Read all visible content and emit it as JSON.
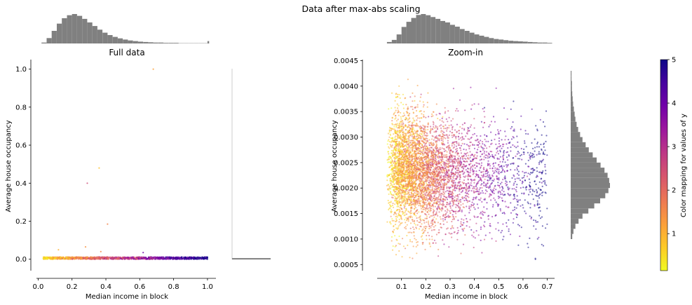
{
  "figure": {
    "suptitle": "Data after max-abs scaling"
  },
  "colors": {
    "hist": "#808080",
    "axis": "#000000",
    "colormap": [
      "#0d0887",
      "#46039f",
      "#7201a8",
      "#9c179e",
      "#bd3786",
      "#d8576b",
      "#ed7953",
      "#fb9f3a",
      "#fdca26",
      "#f0f921"
    ]
  },
  "chart_data": [
    {
      "type": "scatter",
      "title": "Full data",
      "xlabel": "Median income in block",
      "ylabel": "Average house occupancy",
      "xlim": [
        -0.01,
        1.05
      ],
      "ylim": [
        -0.06,
        1.05
      ],
      "xticks": [
        "0.0",
        "0.2",
        "0.4",
        "0.6",
        "0.8",
        "1.0"
      ],
      "xtick_values": [
        0.0,
        0.2,
        0.4,
        0.6,
        0.8,
        1.0
      ],
      "yticks": [
        "0.0",
        "0.2",
        "0.4",
        "0.6",
        "0.8",
        "1.0"
      ],
      "ytick_values": [
        0.0,
        0.2,
        0.4,
        0.6,
        0.8,
        1.0
      ],
      "outliers": [
        {
          "x": 0.68,
          "y": 1.0,
          "c": 1.2
        },
        {
          "x": 0.36,
          "y": 0.48,
          "c": 0.8
        },
        {
          "x": 0.29,
          "y": 0.4,
          "c": 2.5
        },
        {
          "x": 0.41,
          "y": 0.185,
          "c": 1.6
        },
        {
          "x": 0.28,
          "y": 0.065,
          "c": 1.4
        },
        {
          "x": 0.12,
          "y": 0.05,
          "c": 1.0
        },
        {
          "x": 0.62,
          "y": 0.035,
          "c": 4.0
        },
        {
          "x": 0.37,
          "y": 0.04,
          "c": 1.5
        },
        {
          "x": 1.0,
          "y": 0.008,
          "c": 5.0
        }
      ],
      "main_cluster": {
        "x_range": [
          0.03,
          1.0
        ],
        "y_range": [
          0.0,
          0.013
        ]
      },
      "top_histogram": {
        "bins_x": [
          0.02,
          0.05,
          0.08,
          0.11,
          0.14,
          0.17,
          0.2,
          0.23,
          0.26,
          0.29,
          0.32,
          0.35,
          0.38,
          0.41,
          0.44,
          0.47,
          0.5,
          0.53,
          0.56,
          0.59,
          0.62,
          0.65,
          0.68,
          0.71,
          0.74,
          0.77,
          0.8,
          0.83,
          0.86,
          0.89,
          0.92,
          0.95,
          0.98,
          1.0
        ],
        "counts": [
          3,
          18,
          42,
          66,
          84,
          94,
          98,
          92,
          82,
          70,
          58,
          46,
          36,
          28,
          22,
          17,
          13,
          10,
          8,
          6,
          5,
          4,
          3,
          3,
          2,
          2,
          2,
          1,
          1,
          1,
          1,
          1,
          1,
          8
        ]
      }
    },
    {
      "type": "scatter",
      "title": "Zoom-in",
      "xlabel": "Median income in block",
      "ylabel": "Average house occupancy",
      "xlim": [
        0.0,
        0.73
      ],
      "ylim": [
        0.00038,
        0.00452
      ],
      "xticks": [
        "0.1",
        "0.2",
        "0.3",
        "0.4",
        "0.5",
        "0.6",
        "0.7"
      ],
      "xtick_values": [
        0.1,
        0.2,
        0.3,
        0.4,
        0.5,
        0.6,
        0.7
      ],
      "yticks": [
        "0.0005",
        "0.0010",
        "0.0015",
        "0.0020",
        "0.0025",
        "0.0030",
        "0.0035",
        "0.0040",
        "0.0045"
      ],
      "ytick_values": [
        0.0005,
        0.001,
        0.0015,
        0.002,
        0.0025,
        0.003,
        0.0035,
        0.004,
        0.0045
      ],
      "top_histogram": {
        "bins_x": [
          0.04,
          0.06,
          0.08,
          0.1,
          0.12,
          0.14,
          0.16,
          0.18,
          0.2,
          0.22,
          0.24,
          0.26,
          0.28,
          0.3,
          0.32,
          0.34,
          0.36,
          0.38,
          0.4,
          0.42,
          0.44,
          0.46,
          0.48,
          0.5,
          0.52,
          0.54,
          0.56,
          0.58,
          0.6,
          0.62,
          0.64,
          0.66,
          0.68,
          0.7
        ],
        "counts": [
          5,
          12,
          30,
          55,
          72,
          85,
          95,
          98,
          94,
          88,
          82,
          75,
          70,
          62,
          56,
          48,
          42,
          36,
          30,
          26,
          22,
          18,
          15,
          13,
          11,
          9,
          8,
          7,
          6,
          5,
          4,
          3,
          3,
          2
        ]
      },
      "right_histogram": {
        "bins_y": [
          0.001,
          0.0011,
          0.0012,
          0.0013,
          0.0014,
          0.0015,
          0.0016,
          0.0017,
          0.0018,
          0.0019,
          0.002,
          0.0021,
          0.0022,
          0.0023,
          0.0024,
          0.0025,
          0.0026,
          0.0027,
          0.0028,
          0.0029,
          0.003,
          0.0031,
          0.0032,
          0.0033,
          0.0034,
          0.0035,
          0.0036,
          0.0037,
          0.0038,
          0.0039,
          0.004,
          0.0041,
          0.0042
        ],
        "counts": [
          4,
          7,
          12,
          20,
          30,
          45,
          60,
          75,
          88,
          96,
          100,
          98,
          94,
          86,
          76,
          66,
          56,
          46,
          38,
          30,
          24,
          19,
          15,
          12,
          10,
          8,
          6,
          5,
          4,
          3,
          3,
          2,
          2
        ]
      }
    },
    {
      "type": "colorbar",
      "label": "Color mapping for values of y",
      "range": [
        0.15,
        5.0
      ],
      "ticks": [
        "1",
        "2",
        "3",
        "4",
        "5"
      ],
      "tick_values": [
        1,
        2,
        3,
        4,
        5
      ]
    }
  ]
}
